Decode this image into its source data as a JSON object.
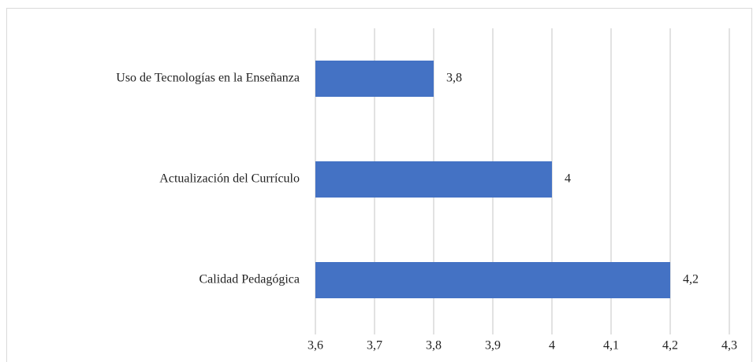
{
  "chart_data": {
    "type": "bar",
    "orientation": "horizontal",
    "categories": [
      "Uso de Tecnologías en la Enseñanza",
      "Actualización del Currículo",
      "Calidad Pedagógica"
    ],
    "values": [
      3.8,
      4,
      4.2
    ],
    "value_labels": [
      "3,8",
      "4",
      "4,2"
    ],
    "color": "#4472c4",
    "xlim": [
      3.6,
      4.3
    ],
    "xticks": [
      {
        "value": 3.6,
        "label": "3,6"
      },
      {
        "value": 3.7,
        "label": "3,7"
      },
      {
        "value": 3.8,
        "label": "3,8"
      },
      {
        "value": 3.9,
        "label": "3,9"
      },
      4,
      {
        "value": 4.1,
        "label": "4,1"
      },
      {
        "value": 4.2,
        "label": "4,2"
      },
      {
        "value": 4.3,
        "label": "4,3"
      }
    ],
    "grid": true
  }
}
